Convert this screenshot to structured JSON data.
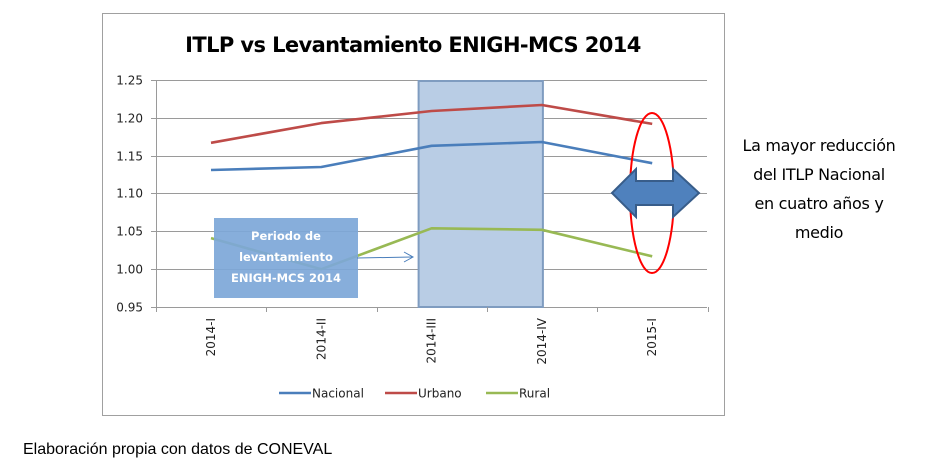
{
  "chart_data": {
    "type": "line",
    "title": "ITLP vs Levantamiento ENIGH-MCS 2014",
    "xlabel": "",
    "ylabel": "",
    "categories": [
      "2014-I",
      "2014-II",
      "2014-III",
      "2014-IV",
      "2015-I"
    ],
    "ylim": [
      0.95,
      1.25
    ],
    "yticks": [
      0.95,
      1.0,
      1.05,
      1.1,
      1.15,
      1.2,
      1.25
    ],
    "ytick_labels": [
      "0.95",
      "1.00",
      "1.05",
      "1.10",
      "1.15",
      "1.20",
      "1.25"
    ],
    "grid": true,
    "legend_position": "bottom",
    "series": [
      {
        "name": "Nacional",
        "color": "#4a7ebb",
        "values": [
          1.131,
          1.135,
          1.163,
          1.168,
          1.14
        ]
      },
      {
        "name": "Urbano",
        "color": "#be4b48",
        "values": [
          1.167,
          1.193,
          1.209,
          1.217,
          1.192
        ]
      },
      {
        "name": "Rural",
        "color": "#98b954",
        "values": [
          1.041,
          1.0,
          1.054,
          1.052,
          1.017
        ]
      }
    ],
    "shaded_period": {
      "from": "2014-III",
      "to": "2014-IV",
      "color": "#b9cde5"
    },
    "annotations": {
      "period_box": {
        "lines": [
          "Periodo de",
          "levantamiento",
          "ENIGH-MCS 2014"
        ],
        "fill": "#7da7d8"
      },
      "callout": {
        "lines": [
          "La mayor reducción",
          "del ITLP Nacional",
          "en cuatro años y",
          "medio"
        ],
        "highlight_category": "2015-I",
        "ellipse_color": "#ff0000",
        "arrow_color": "#4f81bd"
      }
    }
  },
  "footer": {
    "source_note": "Elaboración propia con datos de CONEVAL"
  }
}
